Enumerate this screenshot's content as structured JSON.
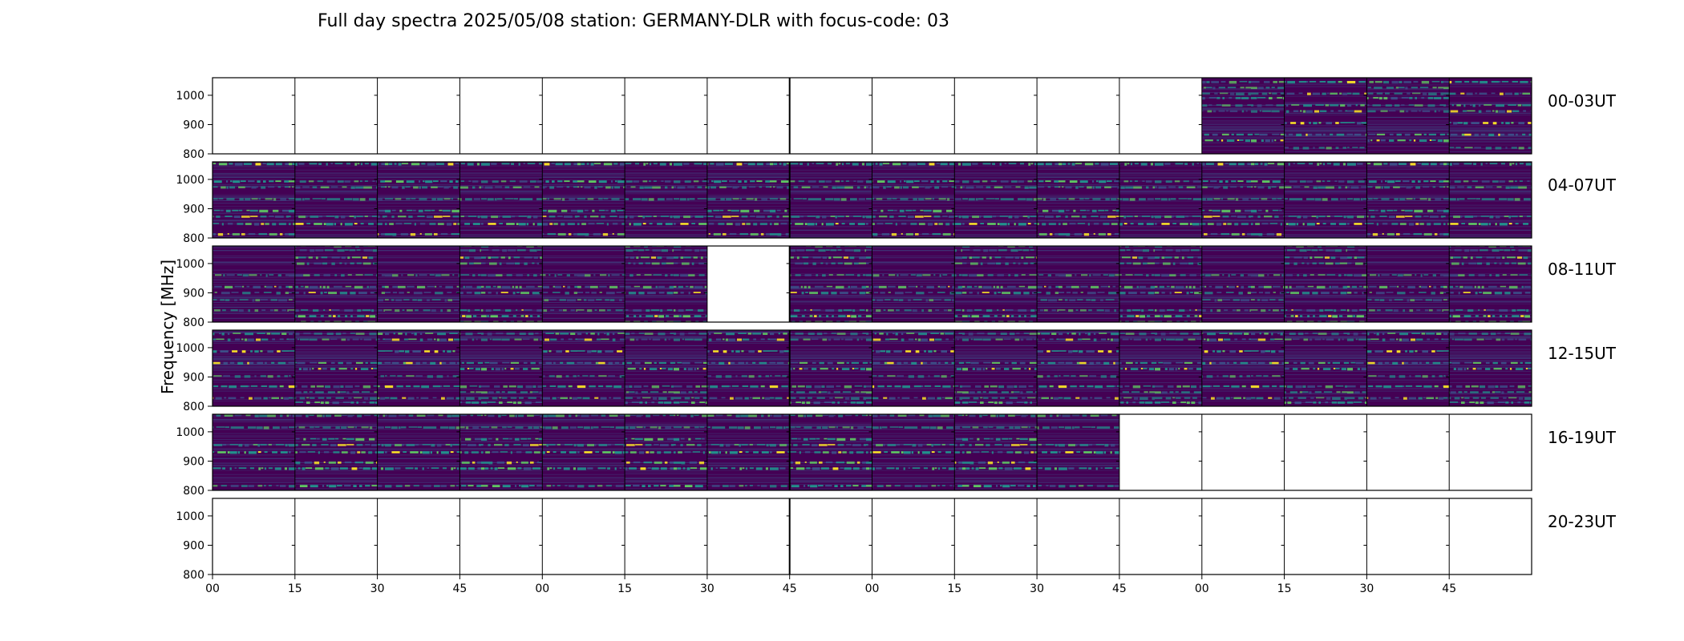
{
  "chart_data": {
    "type": "heatmap",
    "title": "Full day spectra 2025/05/08 station: GERMANY-DLR with focus-code: 03",
    "ylabel": "Frequency [MHz]",
    "xlabel": "",
    "ylim": [
      800,
      1060
    ],
    "yticks": [
      800,
      900,
      1000
    ],
    "xtick_labels": [
      "00",
      "15",
      "30",
      "45",
      "00",
      "15",
      "30",
      "45",
      "00",
      "15",
      "30",
      "45",
      "00",
      "15",
      "30",
      "45"
    ],
    "colormap": "viridis",
    "rows": [
      {
        "label": "00-03UT",
        "panels_with_data": [
          0,
          0,
          0,
          0,
          0,
          0,
          0,
          0,
          0,
          0,
          0,
          0,
          1,
          1,
          1,
          1
        ]
      },
      {
        "label": "04-07UT",
        "panels_with_data": [
          1,
          1,
          1,
          1,
          1,
          1,
          1,
          1,
          1,
          1,
          1,
          1,
          1,
          1,
          1,
          1
        ]
      },
      {
        "label": "08-11UT",
        "panels_with_data": [
          1,
          1,
          1,
          1,
          1,
          1,
          0,
          1,
          1,
          1,
          1,
          1,
          1,
          1,
          1,
          1
        ]
      },
      {
        "label": "12-15UT",
        "panels_with_data": [
          1,
          1,
          1,
          1,
          1,
          1,
          1,
          1,
          1,
          1,
          1,
          1,
          1,
          1,
          1,
          1
        ]
      },
      {
        "label": "16-19UT",
        "panels_with_data": [
          1,
          1,
          1,
          1,
          1,
          1,
          1,
          1,
          1,
          1,
          1,
          0,
          0,
          0,
          0,
          0
        ]
      },
      {
        "label": "20-23UT",
        "panels_with_data": [
          0,
          0,
          0,
          0,
          0,
          0,
          0,
          0,
          0,
          0,
          0,
          0,
          0,
          0,
          0,
          0
        ]
      }
    ],
    "bright_bands_mhz": [
      1040,
      1020,
      1000,
      985,
      960,
      940,
      900,
      860,
      840,
      815
    ],
    "colors": {
      "background": "#440154",
      "dim": "#3b528b",
      "mid": "#21918c",
      "bright": "#5ec962",
      "peak": "#fde725"
    }
  }
}
